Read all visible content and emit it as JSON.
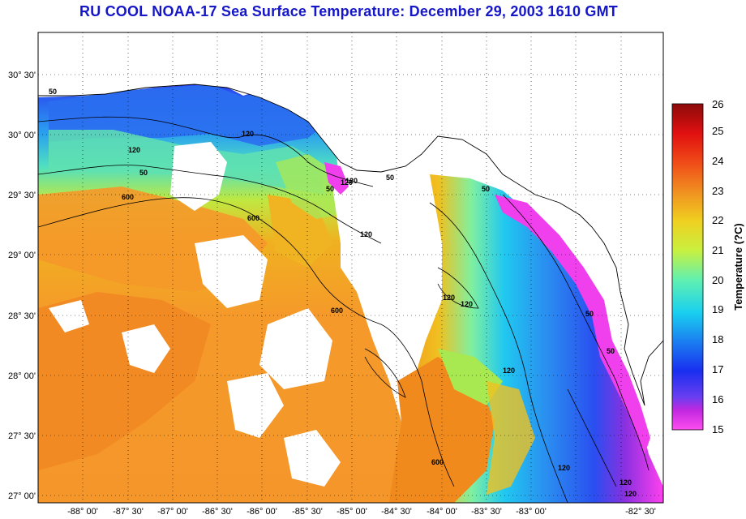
{
  "title": "RU COOL  NOAA-17  Sea Surface Temperature:  December 29, 2003 1610 GMT",
  "colorbar": {
    "label": "Temperature (?C)",
    "ticks": [
      "26",
      "25",
      "24",
      "23",
      "22",
      "21",
      "20",
      "19",
      "18",
      "17",
      "16",
      "15"
    ]
  },
  "latitude_labels": [
    "30° 30'",
    "30° 00'",
    "29° 30'",
    "29° 00'",
    "28° 30'",
    "28° 00'",
    "27° 30'",
    "27° 00'"
  ],
  "longitude_labels": [
    "-88° 00'",
    "-87° 30'",
    "-87° 00'",
    "-86° 30'",
    "-86° 00'",
    "-85° 30'",
    "-85° 00'",
    "-84° 30'",
    "-84° 00'",
    "-83° 30'",
    "-83° 00'",
    "-82° 30'"
  ],
  "contour_labels": [
    "50",
    "120",
    "600",
    "120",
    "50",
    "600",
    "120",
    "600",
    "50",
    "50",
    "120",
    "120",
    "120",
    "120",
    "600",
    "120",
    "50",
    "120",
    "120",
    "50",
    "50",
    "120"
  ],
  "colors": {
    "title": "#1416c8",
    "land": "#ffffff",
    "frame": "#000000"
  }
}
